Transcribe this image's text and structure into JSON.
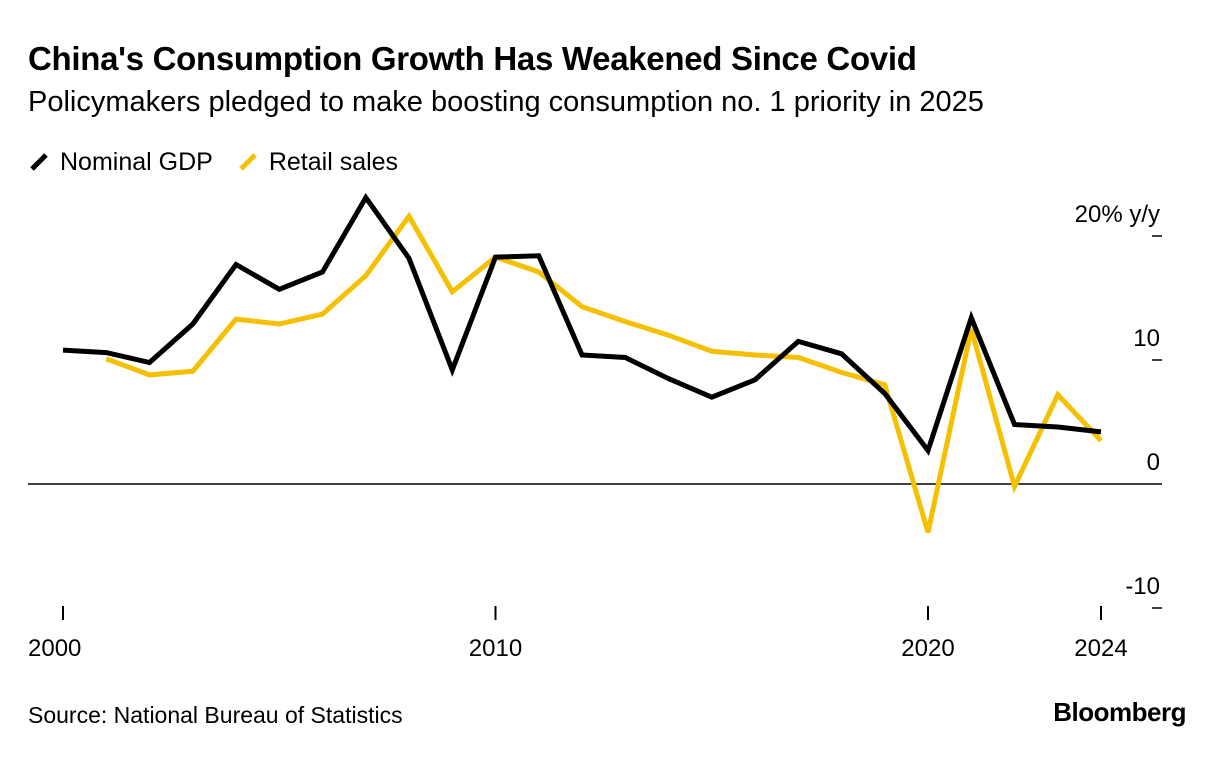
{
  "title": "China's Consumption Growth Has Weakened Since Covid",
  "subtitle": "Policymakers pledged to make boosting consumption no. 1 priority in 2025",
  "source": "Source: National Bureau of Statistics",
  "brand": "Bloomberg",
  "colors": {
    "gdp": "#000000",
    "retail": "#f5c000",
    "axis": "#000000"
  },
  "chart_data": {
    "type": "line",
    "title": "China's Consumption Growth Has Weakened Since Covid",
    "ylabel": "% y/y",
    "ylim": [
      -10,
      20
    ],
    "y_ticks": [
      {
        "value": 20,
        "label": "20% y/y"
      },
      {
        "value": 10,
        "label": "10"
      },
      {
        "value": 0,
        "label": "0"
      },
      {
        "value": -10,
        "label": "-10"
      }
    ],
    "xlim": [
      2000,
      2024
    ],
    "x_ticks": [
      {
        "value": 2000,
        "label": "2000"
      },
      {
        "value": 2010,
        "label": "2010"
      },
      {
        "value": 2020,
        "label": "2020"
      },
      {
        "value": 2024,
        "label": "2024"
      }
    ],
    "legend_position": "top-left",
    "series": [
      {
        "name": "Nominal GDP",
        "color": "#000000",
        "points": [
          [
            2000,
            10.8
          ],
          [
            2001,
            10.6
          ],
          [
            2002,
            9.8
          ],
          [
            2003,
            12.9
          ],
          [
            2004,
            17.7
          ],
          [
            2005,
            15.7
          ],
          [
            2006,
            17.1
          ],
          [
            2007,
            23.1
          ],
          [
            2008,
            18.2
          ],
          [
            2009,
            9.2
          ],
          [
            2010,
            18.3
          ],
          [
            2011,
            18.4
          ],
          [
            2012,
            10.4
          ],
          [
            2013,
            10.2
          ],
          [
            2014,
            8.5
          ],
          [
            2015,
            7.0
          ],
          [
            2016,
            8.4
          ],
          [
            2017,
            11.5
          ],
          [
            2018,
            10.5
          ],
          [
            2019,
            7.3
          ],
          [
            2020,
            2.7
          ],
          [
            2021,
            13.4
          ],
          [
            2022,
            4.8
          ],
          [
            2023,
            4.6
          ],
          [
            2024,
            4.2
          ]
        ]
      },
      {
        "name": "Retail sales",
        "color": "#f5c000",
        "points": [
          [
            2001,
            10.1
          ],
          [
            2002,
            8.8
          ],
          [
            2003,
            9.1
          ],
          [
            2004,
            13.3
          ],
          [
            2005,
            12.9
          ],
          [
            2006,
            13.7
          ],
          [
            2007,
            16.8
          ],
          [
            2008,
            21.6
          ],
          [
            2009,
            15.5
          ],
          [
            2010,
            18.3
          ],
          [
            2011,
            17.1
          ],
          [
            2012,
            14.3
          ],
          [
            2013,
            13.1
          ],
          [
            2014,
            12.0
          ],
          [
            2015,
            10.7
          ],
          [
            2016,
            10.4
          ],
          [
            2017,
            10.2
          ],
          [
            2018,
            9.0
          ],
          [
            2019,
            8.0
          ],
          [
            2020,
            -3.9
          ],
          [
            2021,
            12.5
          ],
          [
            2022,
            -0.2
          ],
          [
            2023,
            7.2
          ],
          [
            2024,
            3.5
          ]
        ]
      }
    ]
  }
}
